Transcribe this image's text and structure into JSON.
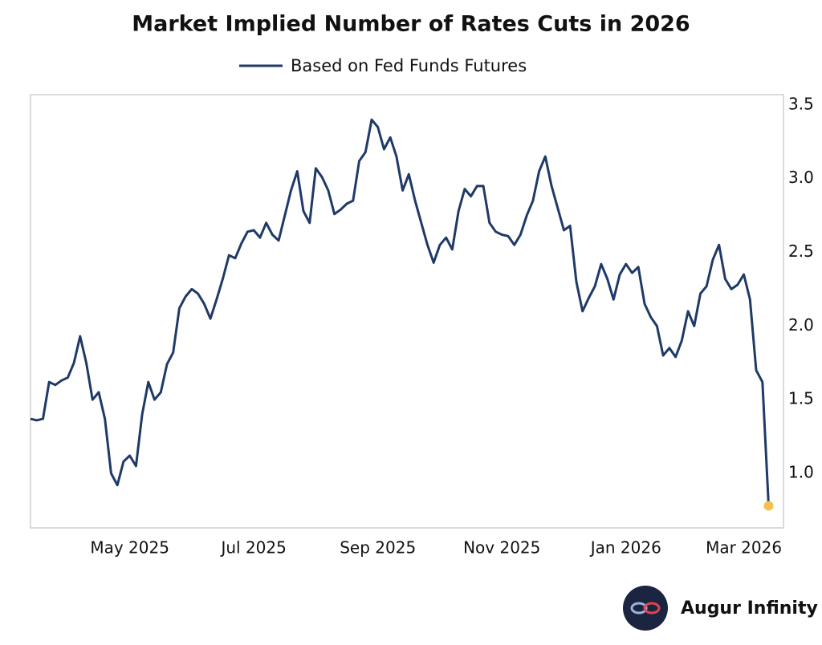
{
  "chart_data": {
    "type": "line",
    "title": "Market Implied Number of Rates Cuts in 2026",
    "categories": [
      null,
      null,
      null,
      null,
      null,
      null,
      null,
      null,
      null,
      null,
      null,
      null,
      null,
      null,
      null,
      null,
      "May 2025",
      null,
      null,
      null,
      null,
      null,
      null,
      null,
      null,
      null,
      null,
      null,
      null,
      null,
      null,
      null,
      null,
      null,
      null,
      null,
      "Jul 2025",
      null,
      null,
      null,
      null,
      null,
      null,
      null,
      null,
      null,
      null,
      null,
      null,
      null,
      null,
      null,
      null,
      null,
      null,
      null,
      "Sep 2025",
      null,
      null,
      null,
      null,
      null,
      null,
      null,
      null,
      null,
      null,
      null,
      null,
      null,
      null,
      null,
      null,
      null,
      null,
      null,
      "Nov 2025",
      null,
      null,
      null,
      null,
      null,
      null,
      null,
      null,
      null,
      null,
      null,
      null,
      null,
      null,
      null,
      null,
      null,
      null,
      null,
      "Jan 2026",
      null,
      null,
      null,
      null,
      null,
      null,
      null,
      null,
      null,
      null,
      null,
      null,
      null,
      null,
      null,
      null,
      null,
      null,
      "Mar 2026",
      null,
      null,
      null,
      null
    ],
    "series": [
      {
        "name": "Based on Fed Funds Futures",
        "color": "#1f3a68",
        "values": [
          1.37,
          1.36,
          1.37,
          1.62,
          1.6,
          1.63,
          1.65,
          1.75,
          1.93,
          1.75,
          1.5,
          1.55,
          1.37,
          1.0,
          0.92,
          1.08,
          1.12,
          1.05,
          1.4,
          1.62,
          1.5,
          1.55,
          1.74,
          1.82,
          2.12,
          2.2,
          2.25,
          2.22,
          2.15,
          2.05,
          2.18,
          2.32,
          2.48,
          2.46,
          2.56,
          2.64,
          2.65,
          2.6,
          2.7,
          2.62,
          2.58,
          2.75,
          2.92,
          3.05,
          2.78,
          2.7,
          3.07,
          3.01,
          2.92,
          2.76,
          2.79,
          2.83,
          2.85,
          3.12,
          3.18,
          3.4,
          3.35,
          3.2,
          3.28,
          3.15,
          2.92,
          3.03,
          2.85,
          2.7,
          2.55,
          2.43,
          2.55,
          2.6,
          2.52,
          2.78,
          2.93,
          2.88,
          2.95,
          2.95,
          2.7,
          2.64,
          2.62,
          2.61,
          2.55,
          2.62,
          2.75,
          2.85,
          3.05,
          3.15,
          2.95,
          2.8,
          2.65,
          2.68,
          2.3,
          2.1,
          2.19,
          2.27,
          2.42,
          2.32,
          2.18,
          2.35,
          2.42,
          2.36,
          2.4,
          2.15,
          2.06,
          2.0,
          1.8,
          1.85,
          1.79,
          1.9,
          2.1,
          2.0,
          2.22,
          2.27,
          2.45,
          2.55,
          2.32,
          2.25,
          2.28,
          2.35,
          2.18,
          1.7,
          1.62,
          0.78
        ]
      }
    ],
    "last_point_color": "#f2c14e",
    "ylim": [
      0.63,
      3.57
    ],
    "yticks": [
      {
        "value": 1,
        "label": "1.0"
      },
      1.5,
      {
        "value": 2,
        "label": "2.0"
      },
      2.5,
      {
        "value": 3,
        "label": "3.0"
      },
      3.5
    ],
    "grid": false
  },
  "brand": "Augur Infinity"
}
